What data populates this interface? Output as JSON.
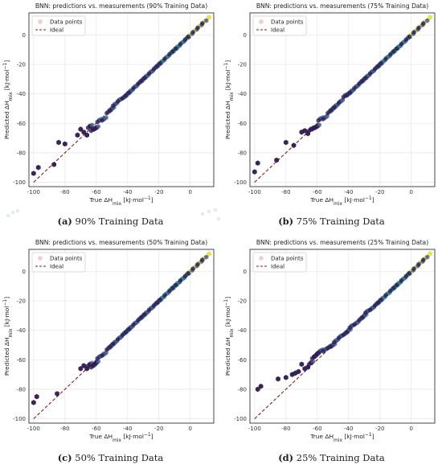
{
  "figure": {
    "captions": [
      {
        "letter": "(a)",
        "text": "90% Training Data"
      },
      {
        "letter": "(b)",
        "text": "75% Training Data"
      },
      {
        "letter": "(c)",
        "text": "50% Training Data"
      },
      {
        "letter": "(d)",
        "text": "25% Training Data"
      }
    ]
  },
  "colors": {
    "hex_dark": "#2d1a4f",
    "hex_mid": "#3b5a8f",
    "hex_teal": "#2a9d8f",
    "hex_yellow": "#e8e24a",
    "ideal_line": "#8b1a1a",
    "grid": "#e6e6e6",
    "frame": "#333333"
  },
  "chart_data": [
    {
      "type": "scatter",
      "title": "BNN: predictions vs. measurements (90% Training Data)",
      "xlabel": "True ΔH_mix [kJ·mol⁻¹]",
      "ylabel": "Predicted ΔH_mix [kJ·mol⁻¹]",
      "xlim": [
        -103,
        15
      ],
      "ylim": [
        -103,
        15
      ],
      "xticks": [
        "-100",
        "-80",
        "-60",
        "-40",
        "-20",
        "0"
      ],
      "yticks": [
        "-100",
        "-80",
        "-60",
        "-40",
        "-20",
        "0"
      ],
      "legend": [
        "Data points",
        "Ideal"
      ],
      "legend_position": "top-left",
      "grid": true,
      "series": [
        {
          "name": "Data points",
          "x": [
            -100,
            -97,
            -87,
            -84,
            -80,
            -72,
            -70,
            -68,
            -66,
            -64,
            -62,
            -60,
            -58,
            -55,
            -52,
            -50,
            -48,
            -45,
            -42,
            -40,
            -38,
            -35,
            -32,
            -30,
            -28,
            -25,
            -22,
            -20,
            -18,
            -15,
            -12,
            -10,
            -8,
            -5,
            -2,
            0,
            3,
            6,
            9,
            12
          ],
          "y": [
            -94,
            -90,
            -88,
            -73,
            -74,
            -68,
            -64,
            -66,
            -68,
            -62,
            -64,
            -63,
            -58,
            -57,
            -52,
            -50,
            -47,
            -44,
            -42,
            -40,
            -38,
            -35,
            -32,
            -30,
            -28,
            -25,
            -22,
            -20,
            -18,
            -15,
            -12,
            -10,
            -8,
            -5,
            -2,
            0,
            3,
            6,
            9,
            12
          ]
        },
        {
          "name": "Ideal",
          "x": [
            -100,
            12
          ],
          "y": [
            -100,
            12
          ]
        }
      ]
    },
    {
      "type": "scatter",
      "title": "BNN: predictions vs. measurements (75% Training Data)",
      "xlabel": "True ΔH_mix [kJ·mol⁻¹]",
      "ylabel": "Predicted ΔH_mix [kJ·mol⁻¹]",
      "xlim": [
        -103,
        15
      ],
      "ylim": [
        -103,
        15
      ],
      "xticks": [
        "-100",
        "-80",
        "-60",
        "-40",
        "-20",
        "0"
      ],
      "yticks": [
        "-100",
        "-80",
        "-60",
        "-40",
        "-20",
        "0"
      ],
      "legend": [
        "Data points",
        "Ideal"
      ],
      "legend_position": "top-left",
      "grid": true,
      "series": [
        {
          "name": "Data points",
          "x": [
            -100,
            -98,
            -86,
            -80,
            -75,
            -70,
            -68,
            -66,
            -64,
            -62,
            -60,
            -58,
            -55,
            -52,
            -50,
            -48,
            -45,
            -42,
            -40,
            -38,
            -35,
            -32,
            -30,
            -28,
            -25,
            -22,
            -20,
            -18,
            -15,
            -12,
            -10,
            -8,
            -5,
            -2,
            0,
            3,
            6,
            9,
            12
          ],
          "y": [
            -93,
            -87,
            -85,
            -73,
            -75,
            -66,
            -65,
            -67,
            -64,
            -63,
            -62,
            -57,
            -56,
            -52,
            -50,
            -48,
            -45,
            -41,
            -40,
            -38,
            -35,
            -32,
            -30,
            -28,
            -25,
            -22,
            -20,
            -18,
            -15,
            -12,
            -10,
            -8,
            -5,
            -2,
            0,
            3,
            6,
            9,
            12
          ]
        },
        {
          "name": "Ideal",
          "x": [
            -100,
            12
          ],
          "y": [
            -100,
            12
          ]
        }
      ]
    },
    {
      "type": "scatter",
      "title": "BNN: predictions vs. measurements (50% Training Data)",
      "xlabel": "True ΔH_mix [kJ·mol⁻¹]",
      "ylabel": "Predicted ΔH_mix [kJ·mol⁻¹]",
      "xlim": [
        -103,
        15
      ],
      "ylim": [
        -103,
        15
      ],
      "xticks": [
        "-100",
        "-80",
        "-60",
        "-40",
        "-20",
        "0"
      ],
      "yticks": [
        "-100",
        "-80",
        "-60",
        "-40",
        "-20",
        "0"
      ],
      "legend": [
        "Data points",
        "Ideal"
      ],
      "legend_position": "top-left",
      "grid": true,
      "series": [
        {
          "name": "Data points",
          "x": [
            -100,
            -98,
            -85,
            -70,
            -68,
            -66,
            -64,
            -62,
            -60,
            -58,
            -55,
            -52,
            -50,
            -48,
            -45,
            -42,
            -40,
            -38,
            -35,
            -32,
            -30,
            -28,
            -25,
            -22,
            -20,
            -18,
            -15,
            -12,
            -10,
            -8,
            -5,
            -2,
            0,
            3,
            6,
            9,
            12
          ],
          "y": [
            -89,
            -85,
            -83,
            -66,
            -64,
            -66,
            -63,
            -64,
            -62,
            -58,
            -56,
            -52,
            -50,
            -48,
            -45,
            -42,
            -40,
            -38,
            -35,
            -32,
            -30,
            -28,
            -25,
            -22,
            -20,
            -18,
            -15,
            -12,
            -10,
            -8,
            -5,
            -2,
            0,
            3,
            6,
            9,
            12
          ]
        },
        {
          "name": "Ideal",
          "x": [
            -100,
            12
          ],
          "y": [
            -100,
            12
          ]
        }
      ]
    },
    {
      "type": "scatter",
      "title": "BNN: predictions vs. measurements (25% Training Data)",
      "xlabel": "True ΔH_mix [kJ·mol⁻¹]",
      "ylabel": "Predicted ΔH_mix [kJ·mol⁻¹]",
      "xlim": [
        -103,
        15
      ],
      "ylim": [
        -103,
        15
      ],
      "xticks": [
        "-100",
        "-80",
        "-60",
        "-40",
        "-20",
        "0"
      ],
      "yticks": [
        "-100",
        "-80",
        "-60",
        "-40",
        "-20",
        "0"
      ],
      "legend": [
        "Data points",
        "Ideal"
      ],
      "legend_position": "top-left",
      "grid": true,
      "series": [
        {
          "name": "Data points",
          "x": [
            -98,
            -96,
            -85,
            -80,
            -76,
            -74,
            -72,
            -70,
            -68,
            -66,
            -64,
            -62,
            -60,
            -58,
            -55,
            -52,
            -50,
            -48,
            -45,
            -42,
            -40,
            -38,
            -35,
            -32,
            -30,
            -28,
            -25,
            -22,
            -20,
            -18,
            -15,
            -12,
            -10,
            -8,
            -5,
            -2,
            0,
            3,
            6,
            9,
            12
          ],
          "y": [
            -80,
            -78,
            -73,
            -72,
            -70,
            -69,
            -68,
            -63,
            -66,
            -65,
            -62,
            -58,
            -56,
            -54,
            -53,
            -51,
            -50,
            -47,
            -44,
            -42,
            -40,
            -37,
            -35,
            -32,
            -30,
            -27,
            -25,
            -22,
            -20,
            -18,
            -15,
            -12,
            -10,
            -8,
            -5,
            -2,
            0,
            3,
            6,
            9,
            12
          ]
        },
        {
          "name": "Ideal",
          "x": [
            -100,
            12
          ],
          "y": [
            -100,
            12
          ]
        }
      ]
    }
  ]
}
